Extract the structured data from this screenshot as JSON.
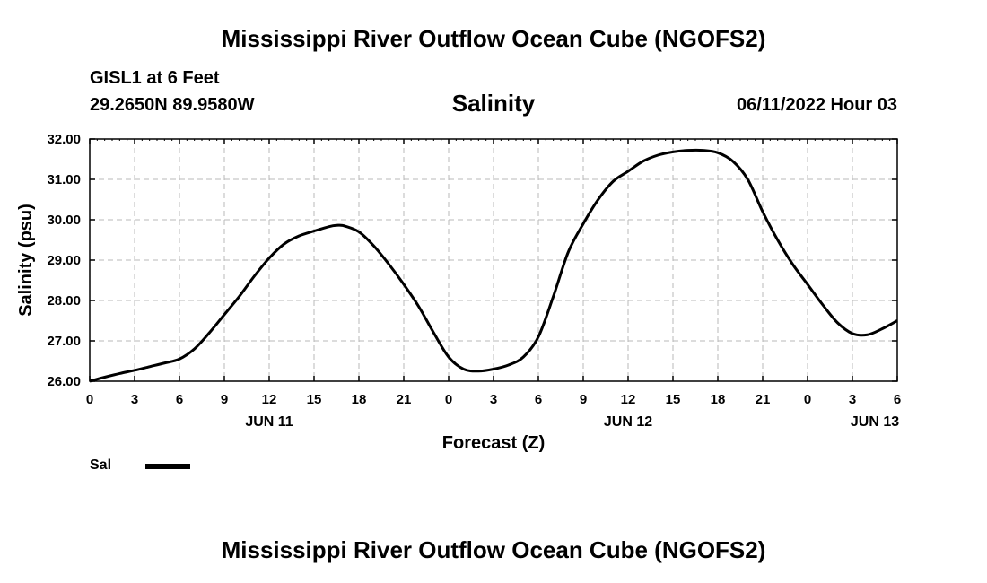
{
  "header": {
    "title": "Mississippi River Outflow Ocean Cube (NGOFS2)",
    "station": "GISL1 at 6 Feet",
    "coords": "29.2650N  89.9580W",
    "variable": "Salinity",
    "datestamp": "06/11/2022 Hour 03"
  },
  "footer": {
    "title": "Mississippi River Outflow Ocean Cube (NGOFS2)"
  },
  "legend": {
    "label": "Sal",
    "color": "#000000"
  },
  "chart_data": {
    "type": "line",
    "title": "Salinity",
    "xlabel": "Forecast (Z)",
    "ylabel": "Salinity (psu)",
    "xlim": [
      0,
      54
    ],
    "ylim": [
      26,
      32
    ],
    "grid": true,
    "x_ticks": [
      0,
      3,
      6,
      9,
      12,
      15,
      18,
      21,
      24,
      27,
      30,
      33,
      36,
      39,
      42,
      45,
      48,
      51,
      54
    ],
    "x_tick_labels": [
      "0",
      "3",
      "6",
      "9",
      "12",
      "15",
      "18",
      "21",
      "0",
      "3",
      "6",
      "9",
      "12",
      "15",
      "18",
      "21",
      "0",
      "3",
      "6"
    ],
    "y_ticks": [
      26,
      27,
      28,
      29,
      30,
      31,
      32
    ],
    "y_tick_labels": [
      "26.00",
      "27.00",
      "28.00",
      "29.00",
      "30.00",
      "31.00",
      "32.00"
    ],
    "day_labels": [
      {
        "x": 12,
        "label": "JUN 11"
      },
      {
        "x": 36,
        "label": "JUN 12"
      },
      {
        "x": 52.5,
        "label": "JUN 13"
      }
    ],
    "series": [
      {
        "name": "Sal",
        "x": [
          0,
          1,
          2,
          3,
          4,
          5,
          6,
          7,
          8,
          9,
          10,
          11,
          12,
          13,
          14,
          15,
          16,
          16.5,
          17,
          18,
          19,
          20,
          21,
          22,
          23,
          24,
          25,
          26,
          27,
          28,
          29,
          30,
          31,
          32,
          33,
          34,
          35,
          36,
          37,
          38,
          39,
          40,
          41,
          42,
          43,
          44,
          45,
          46,
          47,
          48,
          49,
          50,
          51,
          52,
          53,
          54
        ],
        "values": [
          26.0,
          26.1,
          26.19,
          26.27,
          26.36,
          26.45,
          26.55,
          26.8,
          27.2,
          27.65,
          28.1,
          28.6,
          29.05,
          29.4,
          29.6,
          29.72,
          29.83,
          29.86,
          29.85,
          29.7,
          29.35,
          28.9,
          28.4,
          27.85,
          27.2,
          26.6,
          26.3,
          26.25,
          26.3,
          26.4,
          26.6,
          27.1,
          28.1,
          29.2,
          29.9,
          30.5,
          30.95,
          31.2,
          31.45,
          31.6,
          31.68,
          31.72,
          31.72,
          31.66,
          31.45,
          31.0,
          30.2,
          29.5,
          28.9,
          28.4,
          27.9,
          27.45,
          27.18,
          27.15,
          27.3,
          27.5
        ]
      }
    ]
  }
}
